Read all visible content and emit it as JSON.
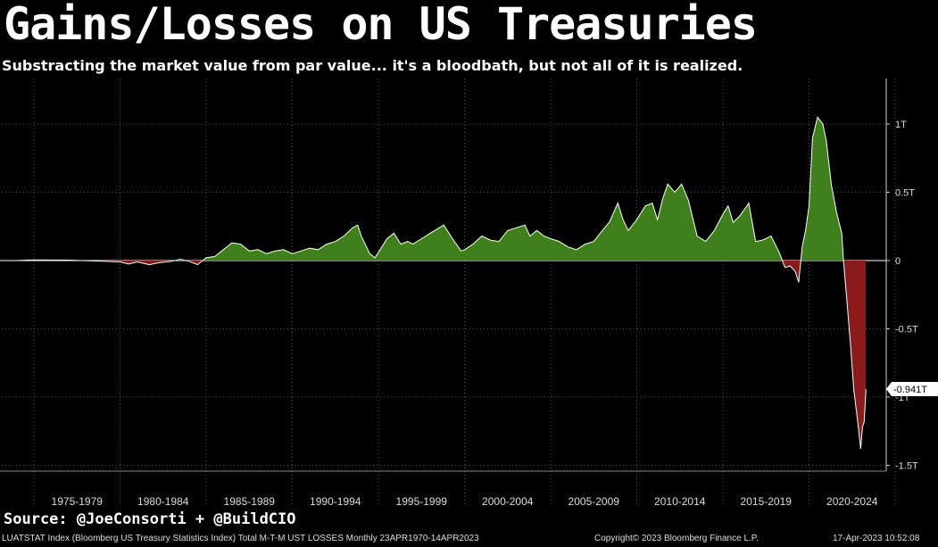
{
  "header": {
    "title": "Gains/Losses on US Treasuries",
    "subtitle": "Substracting the market value from par value... it's a bloodbath, but not all of it is realized."
  },
  "footer": {
    "source": "Source: @JoeConsorti + @BuildCIO",
    "series_info": "LUATSTAT Index (Bloomberg US Treasury Statistics Index) Total M-T-M UST LOSSES  Monthly 23APR1970-14APR2023",
    "copyright": "Copyright© 2023 Bloomberg Finance L.P.",
    "timestamp": "17-Apr-2023 10:52:08"
  },
  "colors": {
    "gain": "#3f7f1c",
    "loss": "#8b1a1a",
    "line": "#ffffff",
    "grid": "#555555"
  },
  "chart_data": {
    "type": "area",
    "y_unit": "trillion USD",
    "ylim": [
      -1.5,
      1.1
    ],
    "y_ticks": [
      {
        "value": 1,
        "label": "1T"
      },
      {
        "value": 0.5,
        "label": "0.5T"
      },
      {
        "value": 0,
        "label": "0"
      },
      {
        "value": -0.5,
        "label": "-0.5T"
      },
      {
        "value": -1,
        "label": "-1T"
      },
      {
        "value": -1.5,
        "label": "-1.5T"
      }
    ],
    "x_categories": [
      "1975-1979",
      "1980-1984",
      "1985-1989",
      "1990-1994",
      "1995-1999",
      "2000-2004",
      "2005-2009",
      "2010-2014",
      "2015-2019",
      "2020-2024"
    ],
    "grid": true,
    "last_value_label": "-0.941T",
    "last_value": -0.941,
    "series": [
      {
        "values": [
          [
            1970.3,
            0
          ],
          [
            1972,
            0
          ],
          [
            1974,
            0
          ],
          [
            1975,
            0.005
          ],
          [
            1977,
            0.003
          ],
          [
            1979,
            -0.005
          ],
          [
            1980,
            -0.01
          ],
          [
            1980.5,
            -0.025
          ],
          [
            1981,
            -0.01
          ],
          [
            1981.7,
            -0.03
          ],
          [
            1982.3,
            -0.015
          ],
          [
            1983,
            -0.005
          ],
          [
            1983.5,
            0.01
          ],
          [
            1984,
            -0.005
          ],
          [
            1984.5,
            -0.03
          ],
          [
            1985,
            0.02
          ],
          [
            1985.5,
            0.03
          ],
          [
            1986,
            0.08
          ],
          [
            1986.5,
            0.13
          ],
          [
            1987,
            0.12
          ],
          [
            1987.5,
            0.07
          ],
          [
            1988,
            0.08
          ],
          [
            1988.5,
            0.05
          ],
          [
            1989,
            0.07
          ],
          [
            1989.5,
            0.08
          ],
          [
            1990,
            0.05
          ],
          [
            1990.5,
            0.07
          ],
          [
            1991,
            0.09
          ],
          [
            1991.5,
            0.08
          ],
          [
            1992,
            0.12
          ],
          [
            1992.5,
            0.14
          ],
          [
            1993,
            0.18
          ],
          [
            1993.5,
            0.24
          ],
          [
            1993.8,
            0.26
          ],
          [
            1994,
            0.18
          ],
          [
            1994.5,
            0.05
          ],
          [
            1994.8,
            0.02
          ],
          [
            1995,
            0.06
          ],
          [
            1995.5,
            0.16
          ],
          [
            1995.9,
            0.2
          ],
          [
            1996.3,
            0.12
          ],
          [
            1996.7,
            0.14
          ],
          [
            1997,
            0.12
          ],
          [
            1997.5,
            0.16
          ],
          [
            1998,
            0.2
          ],
          [
            1998.8,
            0.26
          ],
          [
            1999.3,
            0.16
          ],
          [
            1999.8,
            0.07
          ],
          [
            2000,
            0.08
          ],
          [
            2000.5,
            0.12
          ],
          [
            2001,
            0.18
          ],
          [
            2001.5,
            0.15
          ],
          [
            2002,
            0.14
          ],
          [
            2002.5,
            0.22
          ],
          [
            2003,
            0.24
          ],
          [
            2003.5,
            0.26
          ],
          [
            2003.8,
            0.18
          ],
          [
            2004.2,
            0.22
          ],
          [
            2004.6,
            0.18
          ],
          [
            2005,
            0.16
          ],
          [
            2005.5,
            0.14
          ],
          [
            2006,
            0.1
          ],
          [
            2006.5,
            0.08
          ],
          [
            2007,
            0.12
          ],
          [
            2007.5,
            0.14
          ],
          [
            2008,
            0.22
          ],
          [
            2008.4,
            0.28
          ],
          [
            2008.9,
            0.42
          ],
          [
            2009.2,
            0.3
          ],
          [
            2009.5,
            0.22
          ],
          [
            2010,
            0.3
          ],
          [
            2010.5,
            0.4
          ],
          [
            2010.9,
            0.42
          ],
          [
            2011.2,
            0.3
          ],
          [
            2011.5,
            0.45
          ],
          [
            2011.8,
            0.56
          ],
          [
            2012.2,
            0.5
          ],
          [
            2012.6,
            0.56
          ],
          [
            2013,
            0.44
          ],
          [
            2013.5,
            0.18
          ],
          [
            2014,
            0.14
          ],
          [
            2014.5,
            0.22
          ],
          [
            2015,
            0.34
          ],
          [
            2015.3,
            0.4
          ],
          [
            2015.6,
            0.28
          ],
          [
            2016,
            0.33
          ],
          [
            2016.5,
            0.42
          ],
          [
            2016.9,
            0.14
          ],
          [
            2017.3,
            0.15
          ],
          [
            2017.8,
            0.18
          ],
          [
            2018.3,
            0.05
          ],
          [
            2018.6,
            -0.05
          ],
          [
            2018.9,
            -0.04
          ],
          [
            2019.2,
            -0.08
          ],
          [
            2019.4,
            -0.16
          ],
          [
            2019.6,
            0.1
          ],
          [
            2019.8,
            0.22
          ],
          [
            2020,
            0.4
          ],
          [
            2020.2,
            0.9
          ],
          [
            2020.5,
            1.05
          ],
          [
            2020.8,
            1.0
          ],
          [
            2021,
            0.88
          ],
          [
            2021.3,
            0.55
          ],
          [
            2021.6,
            0.35
          ],
          [
            2021.9,
            0.2
          ],
          [
            2022,
            0.0
          ],
          [
            2022.2,
            -0.3
          ],
          [
            2022.4,
            -0.6
          ],
          [
            2022.6,
            -0.95
          ],
          [
            2022.8,
            -1.15
          ],
          [
            2023.0,
            -1.38
          ],
          [
            2023.1,
            -1.22
          ],
          [
            2023.2,
            -1.18
          ],
          [
            2023.3,
            -0.95
          ],
          [
            2023.29,
            -0.941
          ]
        ]
      }
    ]
  }
}
